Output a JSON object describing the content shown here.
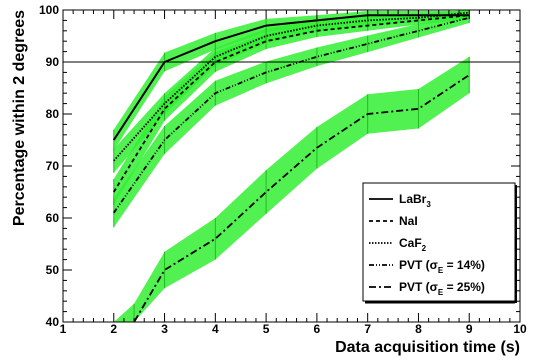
{
  "chart_data": {
    "type": "line",
    "xlabel": "Data acquisition time (s)",
    "ylabel": "Percentage within 2 degrees",
    "xlim": [
      1,
      10
    ],
    "ylim": [
      40,
      100
    ],
    "xticks": [
      "1",
      "2",
      "3",
      "4",
      "5",
      "6",
      "7",
      "8",
      "9",
      "10"
    ],
    "yticks": [
      "40",
      "50",
      "60",
      "70",
      "80",
      "90",
      "100"
    ],
    "reference_line": 90,
    "band_color": "#33ee33",
    "line_color": "#000000",
    "grid": false,
    "legend_position": "bottom-right",
    "series": [
      {
        "name": "LaBr3",
        "name_main": "LaBr",
        "name_sub": "3",
        "name_tail": "",
        "dash": "",
        "x": [
          2,
          3,
          4,
          5,
          6,
          7,
          8,
          9
        ],
        "values": [
          75,
          90,
          94,
          97,
          98,
          99,
          99,
          99
        ],
        "band": [
          2,
          1.8,
          1.6,
          1.3,
          1,
          0.8,
          0.8,
          0.8
        ]
      },
      {
        "name": "NaI",
        "name_main": "NaI",
        "name_sub": "",
        "name_tail": "",
        "dash": "4,3",
        "x": [
          2,
          3,
          4,
          5,
          6,
          7,
          8,
          9
        ],
        "values": [
          65,
          81,
          90,
          94,
          96,
          97,
          98,
          99
        ],
        "band": [
          2.5,
          2.3,
          1.9,
          1.5,
          1.2,
          1,
          0.8,
          0.8
        ]
      },
      {
        "name": "CaF2",
        "name_main": "CaF",
        "name_sub": "2",
        "name_tail": "",
        "dash": "1.5,1.5",
        "x": [
          2,
          3,
          4,
          5,
          6,
          7,
          8,
          9
        ],
        "values": [
          71,
          82,
          91,
          95,
          97,
          98,
          98.5,
          99.5
        ],
        "band": [
          2.3,
          2,
          1.7,
          1.4,
          1.1,
          0.9,
          0.8,
          0.8
        ]
      },
      {
        "name": "PVT (σE = 14%)",
        "name_main": "PVT (σ",
        "name_sub": "E",
        "name_tail": " = 14%)",
        "dash": "5,2,1,2,1,2",
        "x": [
          2,
          3,
          4,
          5,
          6,
          7,
          8,
          9
        ],
        "values": [
          61,
          75,
          84,
          88,
          91,
          93.5,
          96,
          98.5
        ],
        "band": [
          2.8,
          2.7,
          2.4,
          2.1,
          1.8,
          1.6,
          1.3,
          1
        ]
      },
      {
        "name": "PVT (σE = 25%)",
        "name_main": "PVT (σ",
        "name_sub": "E",
        "name_tail": " = 25%)",
        "dash": "7,3,2,3",
        "x": [
          2,
          2.4,
          3,
          4,
          5,
          6,
          7,
          8,
          9
        ],
        "values": [
          36,
          40,
          50,
          56,
          65,
          73.5,
          80,
          81,
          87.5
        ],
        "band": [
          3.5,
          3.5,
          3.5,
          4,
          4.2,
          4,
          3.8,
          3.8,
          3.5
        ]
      }
    ]
  }
}
